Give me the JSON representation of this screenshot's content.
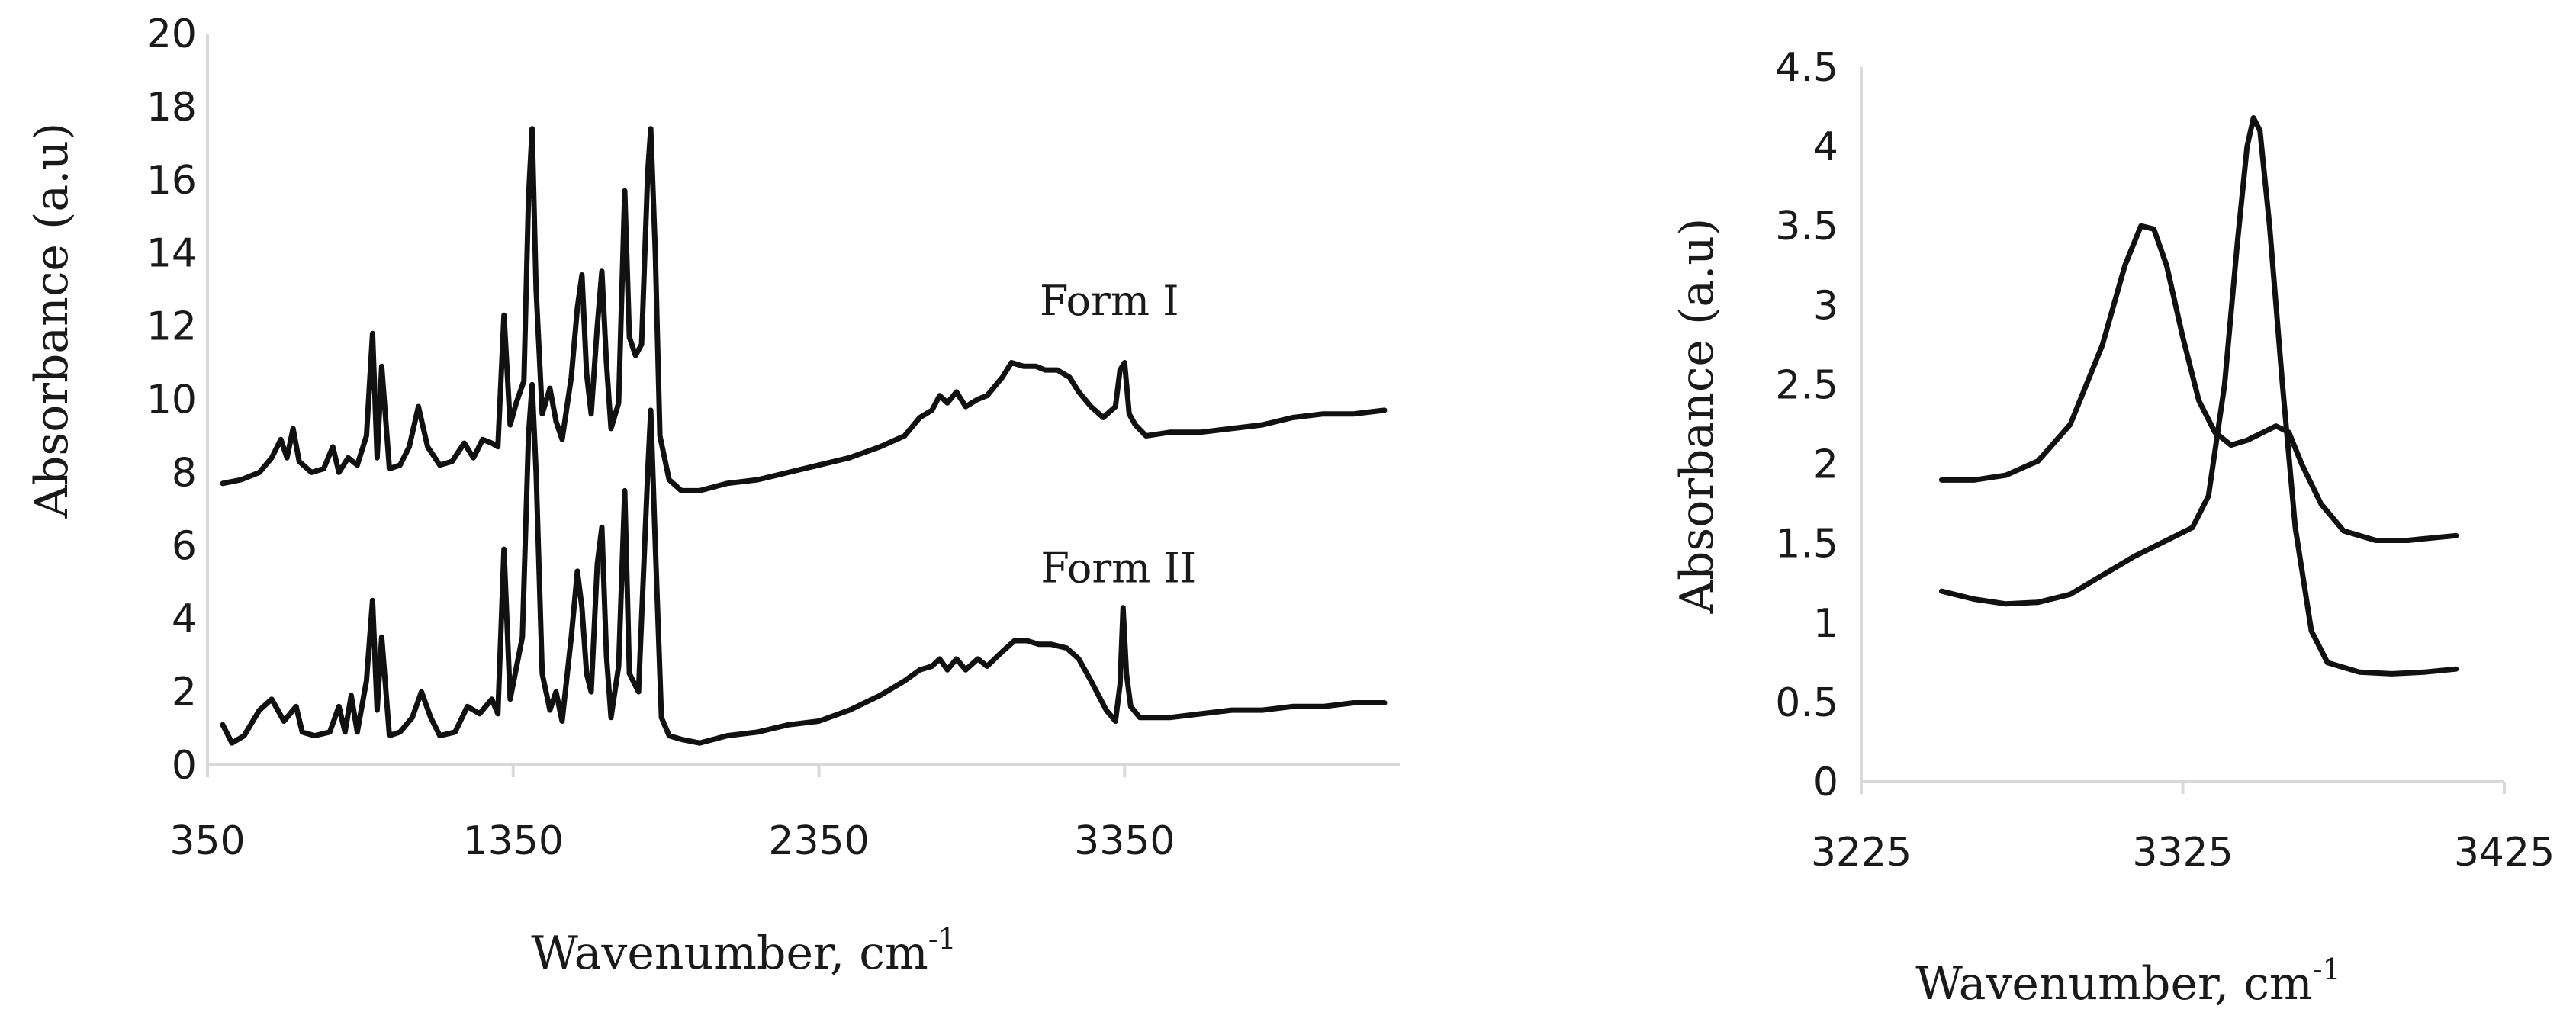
{
  "chart_data": [
    {
      "type": "line",
      "xlabel": "Wavenumber, cm",
      "xlabel_sup": "-1",
      "ylabel": "Absorbance (a.u)",
      "xlim": [
        350,
        4250
      ],
      "ylim": [
        0,
        20
      ],
      "x_ticks": [
        350,
        1350,
        2350,
        3350
      ],
      "y_ticks": [
        0,
        2,
        4,
        6,
        8,
        10,
        12,
        14,
        16,
        18,
        20
      ],
      "grid": false,
      "annotations": [
        {
          "text": "Form I",
          "x": 3300,
          "y": 12.3
        },
        {
          "text": "Form II",
          "x": 3330,
          "y": 5.0
        }
      ],
      "series": [
        {
          "name": "Form I",
          "points": [
            [
              400,
              7.7
            ],
            [
              460,
              7.8
            ],
            [
              520,
              8.0
            ],
            [
              560,
              8.4
            ],
            [
              590,
              8.9
            ],
            [
              610,
              8.4
            ],
            [
              630,
              9.2
            ],
            [
              650,
              8.3
            ],
            [
              690,
              8.0
            ],
            [
              730,
              8.1
            ],
            [
              760,
              8.7
            ],
            [
              780,
              8.0
            ],
            [
              810,
              8.4
            ],
            [
              840,
              8.2
            ],
            [
              870,
              9.0
            ],
            [
              890,
              11.8
            ],
            [
              905,
              8.4
            ],
            [
              920,
              10.9
            ],
            [
              945,
              8.1
            ],
            [
              980,
              8.2
            ],
            [
              1010,
              8.7
            ],
            [
              1040,
              9.8
            ],
            [
              1070,
              8.7
            ],
            [
              1110,
              8.2
            ],
            [
              1150,
              8.3
            ],
            [
              1190,
              8.8
            ],
            [
              1220,
              8.4
            ],
            [
              1250,
              8.9
            ],
            [
              1280,
              8.8
            ],
            [
              1300,
              8.7
            ],
            [
              1320,
              12.3
            ],
            [
              1340,
              9.3
            ],
            [
              1360,
              9.9
            ],
            [
              1385,
              10.5
            ],
            [
              1400,
              15.5
            ],
            [
              1412,
              17.4
            ],
            [
              1425,
              13.0
            ],
            [
              1445,
              9.6
            ],
            [
              1470,
              10.3
            ],
            [
              1490,
              9.4
            ],
            [
              1510,
              8.9
            ],
            [
              1540,
              10.6
            ],
            [
              1560,
              12.5
            ],
            [
              1575,
              13.4
            ],
            [
              1590,
              10.7
            ],
            [
              1605,
              9.6
            ],
            [
              1625,
              12.0
            ],
            [
              1640,
              13.5
            ],
            [
              1655,
              11.0
            ],
            [
              1670,
              9.2
            ],
            [
              1695,
              9.9
            ],
            [
              1715,
              15.7
            ],
            [
              1730,
              11.7
            ],
            [
              1750,
              11.2
            ],
            [
              1770,
              11.5
            ],
            [
              1790,
              16.2
            ],
            [
              1800,
              17.4
            ],
            [
              1815,
              14.0
            ],
            [
              1830,
              9.0
            ],
            [
              1860,
              7.8
            ],
            [
              1900,
              7.5
            ],
            [
              1960,
              7.5
            ],
            [
              2050,
              7.7
            ],
            [
              2150,
              7.8
            ],
            [
              2250,
              8.0
            ],
            [
              2350,
              8.2
            ],
            [
              2450,
              8.4
            ],
            [
              2550,
              8.7
            ],
            [
              2630,
              9.0
            ],
            [
              2680,
              9.5
            ],
            [
              2720,
              9.7
            ],
            [
              2745,
              10.1
            ],
            [
              2770,
              9.9
            ],
            [
              2800,
              10.2
            ],
            [
              2830,
              9.8
            ],
            [
              2870,
              10.0
            ],
            [
              2900,
              10.1
            ],
            [
              2950,
              10.6
            ],
            [
              2980,
              11.0
            ],
            [
              3020,
              10.9
            ],
            [
              3060,
              10.9
            ],
            [
              3090,
              10.8
            ],
            [
              3130,
              10.8
            ],
            [
              3170,
              10.6
            ],
            [
              3200,
              10.2
            ],
            [
              3240,
              9.8
            ],
            [
              3280,
              9.5
            ],
            [
              3320,
              9.8
            ],
            [
              3335,
              10.8
            ],
            [
              3350,
              11.0
            ],
            [
              3365,
              9.6
            ],
            [
              3385,
              9.3
            ],
            [
              3420,
              9.0
            ],
            [
              3500,
              9.1
            ],
            [
              3600,
              9.1
            ],
            [
              3700,
              9.2
            ],
            [
              3800,
              9.3
            ],
            [
              3900,
              9.5
            ],
            [
              4000,
              9.6
            ],
            [
              4100,
              9.6
            ],
            [
              4200,
              9.7
            ]
          ]
        },
        {
          "name": "Form II",
          "points": [
            [
              400,
              1.1
            ],
            [
              430,
              0.6
            ],
            [
              470,
              0.8
            ],
            [
              520,
              1.5
            ],
            [
              560,
              1.8
            ],
            [
              600,
              1.2
            ],
            [
              640,
              1.6
            ],
            [
              660,
              0.9
            ],
            [
              700,
              0.8
            ],
            [
              750,
              0.9
            ],
            [
              780,
              1.6
            ],
            [
              800,
              0.9
            ],
            [
              820,
              1.9
            ],
            [
              840,
              0.9
            ],
            [
              870,
              2.3
            ],
            [
              890,
              4.5
            ],
            [
              905,
              1.5
            ],
            [
              920,
              3.5
            ],
            [
              945,
              0.8
            ],
            [
              980,
              0.9
            ],
            [
              1020,
              1.3
            ],
            [
              1050,
              2.0
            ],
            [
              1080,
              1.3
            ],
            [
              1110,
              0.8
            ],
            [
              1160,
              0.9
            ],
            [
              1200,
              1.6
            ],
            [
              1240,
              1.4
            ],
            [
              1280,
              1.8
            ],
            [
              1300,
              1.4
            ],
            [
              1320,
              5.9
            ],
            [
              1340,
              1.8
            ],
            [
              1380,
              3.5
            ],
            [
              1400,
              9.0
            ],
            [
              1412,
              10.4
            ],
            [
              1425,
              8.0
            ],
            [
              1445,
              2.5
            ],
            [
              1470,
              1.5
            ],
            [
              1490,
              2.0
            ],
            [
              1510,
              1.2
            ],
            [
              1540,
              3.5
            ],
            [
              1560,
              5.3
            ],
            [
              1575,
              4.3
            ],
            [
              1590,
              2.5
            ],
            [
              1605,
              2.0
            ],
            [
              1625,
              5.5
            ],
            [
              1640,
              6.5
            ],
            [
              1655,
              3.0
            ],
            [
              1670,
              1.3
            ],
            [
              1695,
              2.7
            ],
            [
              1715,
              7.5
            ],
            [
              1730,
              2.5
            ],
            [
              1760,
              2.0
            ],
            [
              1790,
              8.0
            ],
            [
              1800,
              9.7
            ],
            [
              1815,
              6.0
            ],
            [
              1835,
              1.3
            ],
            [
              1860,
              0.8
            ],
            [
              1900,
              0.7
            ],
            [
              1960,
              0.6
            ],
            [
              2050,
              0.8
            ],
            [
              2150,
              0.9
            ],
            [
              2250,
              1.1
            ],
            [
              2350,
              1.2
            ],
            [
              2450,
              1.5
            ],
            [
              2550,
              1.9
            ],
            [
              2630,
              2.3
            ],
            [
              2680,
              2.6
            ],
            [
              2720,
              2.7
            ],
            [
              2745,
              2.9
            ],
            [
              2770,
              2.6
            ],
            [
              2800,
              2.9
            ],
            [
              2830,
              2.6
            ],
            [
              2870,
              2.9
            ],
            [
              2900,
              2.7
            ],
            [
              2950,
              3.1
            ],
            [
              2990,
              3.4
            ],
            [
              3030,
              3.4
            ],
            [
              3070,
              3.3
            ],
            [
              3110,
              3.3
            ],
            [
              3160,
              3.2
            ],
            [
              3200,
              2.9
            ],
            [
              3240,
              2.3
            ],
            [
              3290,
              1.5
            ],
            [
              3320,
              1.2
            ],
            [
              3335,
              2.2
            ],
            [
              3345,
              4.3
            ],
            [
              3356,
              2.5
            ],
            [
              3370,
              1.6
            ],
            [
              3400,
              1.3
            ],
            [
              3500,
              1.3
            ],
            [
              3600,
              1.4
            ],
            [
              3700,
              1.5
            ],
            [
              3800,
              1.5
            ],
            [
              3900,
              1.6
            ],
            [
              4000,
              1.6
            ],
            [
              4100,
              1.7
            ],
            [
              4200,
              1.7
            ]
          ]
        }
      ]
    },
    {
      "type": "line",
      "xlabel": "Wavenumber, cm",
      "xlabel_sup": "-1",
      "ylabel": "Absorbance (a.u)",
      "xlim": [
        3225,
        3425
      ],
      "ylim": [
        0,
        4.5
      ],
      "x_ticks": [
        3225,
        3325,
        3425
      ],
      "y_ticks": [
        0,
        0.5,
        1,
        1.5,
        2,
        2.5,
        3,
        3.5,
        4,
        4.5
      ],
      "grid": false,
      "series": [
        {
          "points": [
            [
              3250,
              1.9
            ],
            [
              3260,
              1.9
            ],
            [
              3270,
              1.93
            ],
            [
              3280,
              2.02
            ],
            [
              3290,
              2.25
            ],
            [
              3300,
              2.75
            ],
            [
              3307,
              3.25
            ],
            [
              3312,
              3.5
            ],
            [
              3316,
              3.48
            ],
            [
              3320,
              3.25
            ],
            [
              3325,
              2.8
            ],
            [
              3330,
              2.4
            ],
            [
              3335,
              2.2
            ],
            [
              3340,
              2.12
            ],
            [
              3345,
              2.15
            ],
            [
              3350,
              2.2
            ],
            [
              3354,
              2.24
            ],
            [
              3358,
              2.2
            ],
            [
              3362,
              2.0
            ],
            [
              3368,
              1.75
            ],
            [
              3375,
              1.58
            ],
            [
              3385,
              1.52
            ],
            [
              3395,
              1.52
            ],
            [
              3405,
              1.54
            ],
            [
              3410,
              1.55
            ]
          ]
        },
        {
          "points": [
            [
              3250,
              1.2
            ],
            [
              3260,
              1.15
            ],
            [
              3270,
              1.12
            ],
            [
              3280,
              1.13
            ],
            [
              3290,
              1.18
            ],
            [
              3300,
              1.3
            ],
            [
              3310,
              1.42
            ],
            [
              3320,
              1.52
            ],
            [
              3328,
              1.6
            ],
            [
              3333,
              1.8
            ],
            [
              3338,
              2.5
            ],
            [
              3342,
              3.4
            ],
            [
              3345,
              4.0
            ],
            [
              3347,
              4.18
            ],
            [
              3349,
              4.1
            ],
            [
              3352,
              3.5
            ],
            [
              3356,
              2.5
            ],
            [
              3360,
              1.6
            ],
            [
              3365,
              0.95
            ],
            [
              3370,
              0.75
            ],
            [
              3380,
              0.69
            ],
            [
              3390,
              0.68
            ],
            [
              3400,
              0.69
            ],
            [
              3410,
              0.71
            ]
          ]
        }
      ]
    }
  ]
}
